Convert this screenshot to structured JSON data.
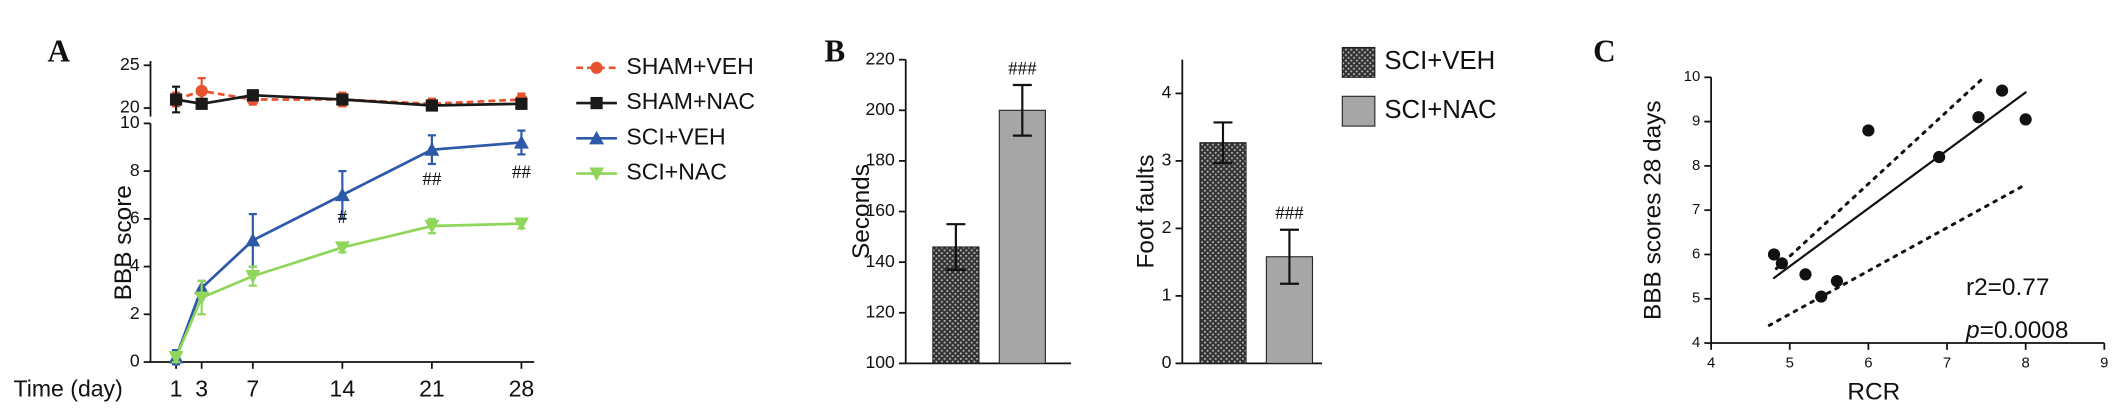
{
  "chart_data": [
    {
      "type": "line",
      "panel_label": "A",
      "ylabel": "BBB score",
      "xlabel": "Time (day)",
      "x": [
        1,
        3,
        7,
        14,
        21,
        28
      ],
      "xlim": [
        -1,
        29
      ],
      "xticks": [
        1,
        3,
        7,
        14,
        21,
        28
      ],
      "ylim": [
        0,
        10
      ],
      "yticks": [
        0,
        2,
        4,
        6,
        8,
        10
      ],
      "y2lim": [
        19,
        25.5
      ],
      "y2ticks": [
        20,
        25
      ],
      "series": [
        {
          "name": "SHAM+VEH",
          "color": "#e8532f",
          "marker": "circle",
          "dashed": true,
          "axis": "y2",
          "values": [
            21,
            22,
            21,
            21,
            20.5,
            21
          ],
          "errors": [
            0.8,
            1.5,
            0.6,
            0.8,
            0.6,
            0.7
          ]
        },
        {
          "name": "SHAM+NAC",
          "color": "#1a1a1a",
          "marker": "square",
          "dashed": false,
          "axis": "y2",
          "values": [
            21,
            20.5,
            21.5,
            21,
            20.3,
            20.5
          ],
          "errors": [
            1.5,
            0.3,
            0.5,
            0.3,
            0.2,
            0.3
          ]
        },
        {
          "name": "SCI+VEH",
          "color": "#2e59a8",
          "marker": "triangle-up",
          "dashed": false,
          "values": [
            0.2,
            3.1,
            5.1,
            7.0,
            8.9,
            9.2
          ],
          "errors": [
            0.3,
            0.3,
            1.1,
            1.0,
            0.6,
            0.5
          ]
        },
        {
          "name": "SCI+NAC",
          "color": "#8fd65a",
          "marker": "triangle-down",
          "dashed": false,
          "values": [
            0.2,
            2.7,
            3.6,
            4.8,
            5.7,
            5.8
          ],
          "errors": [
            0.2,
            0.7,
            0.4,
            0.2,
            0.3,
            0.2
          ]
        }
      ],
      "annotations": [
        {
          "text": "#",
          "x": 14,
          "y": 6.0
        },
        {
          "text": "##",
          "x": 21,
          "y": 7.6
        },
        {
          "text": "##",
          "x": 28,
          "y": 7.9
        }
      ]
    },
    {
      "type": "bar",
      "panel_label": "B",
      "ylabel": "Seconds",
      "ylim": [
        100,
        220
      ],
      "yticks": [
        100,
        120,
        140,
        160,
        180,
        200,
        220
      ],
      "series": [
        {
          "color": "#3a3a3a",
          "pattern": "crosshatch",
          "values": [
            146
          ],
          "errors": [
            9
          ]
        },
        {
          "color": "#a6a6a6",
          "values": [
            200
          ],
          "errors": [
            10
          ]
        }
      ],
      "annotations": [
        {
          "text": "###",
          "series": 1
        }
      ]
    },
    {
      "type": "bar",
      "ylabel": "Foot faults",
      "ylim": [
        0,
        4.5
      ],
      "yticks": [
        0,
        1,
        2,
        3,
        4
      ],
      "series": [
        {
          "name": "SCI+VEH",
          "color": "#3a3a3a",
          "pattern": "crosshatch",
          "values": [
            3.27
          ],
          "errors": [
            0.3
          ]
        },
        {
          "name": "SCI+NAC",
          "color": "#a6a6a6",
          "values": [
            1.58
          ],
          "errors": [
            0.4
          ]
        }
      ],
      "annotations": [
        {
          "text": "###",
          "series": 1
        }
      ]
    },
    {
      "type": "scatter",
      "panel_label": "C",
      "xlabel": "RCR",
      "ylabel": "BBB scores 28 days",
      "xlim": [
        4,
        9
      ],
      "xticks": [
        4,
        5,
        6,
        7,
        8,
        9
      ],
      "ylim": [
        4,
        10
      ],
      "yticks": [
        4,
        5,
        6,
        7,
        8,
        9,
        10
      ],
      "color": "#111111",
      "x": [
        4.8,
        4.9,
        5.2,
        5.4,
        5.6,
        6.0,
        6.9,
        7.4,
        7.7,
        8.0
      ],
      "y": [
        6.0,
        5.8,
        5.55,
        5.05,
        5.4,
        8.8,
        8.2,
        9.1,
        9.7,
        9.05
      ],
      "fit": {
        "x": [
          4.8,
          8.0
        ],
        "y": [
          5.47,
          9.66
        ]
      },
      "band_upper": {
        "x": [
          4.83,
          7.47
        ],
        "y": [
          5.68,
          10
        ]
      },
      "band_lower": {
        "x": [
          4.74,
          7.97
        ],
        "y": [
          4.4,
          7.55
        ]
      },
      "annotations": [
        {
          "text": "r2=0.77"
        },
        {
          "italic": "p",
          "text": "=0.0008"
        }
      ]
    }
  ]
}
